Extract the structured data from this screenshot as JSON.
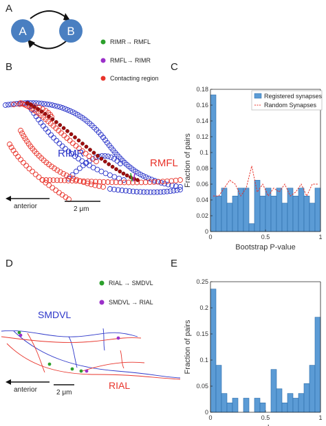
{
  "panels": {
    "A": {
      "letter": "A",
      "node_a": "A",
      "node_b": "B",
      "node_color": "#4a7fc1"
    },
    "B": {
      "letter": "B",
      "legend": [
        {
          "label": "RIMR→ RMFL",
          "color": "#2ca02c"
        },
        {
          "label": "RMFL→ RIMR",
          "color": "#9b30c9"
        },
        {
          "label": "Contacting region",
          "color": "#e8332a"
        }
      ],
      "labels": {
        "rimr": "RIMR",
        "rmfl": "RMFL",
        "anterior": "anterior",
        "scale": "2 μm"
      },
      "colors": {
        "rimr": "#2b35c9",
        "rmfl": "#e8332a",
        "contact": "#a01010"
      }
    },
    "C": {
      "letter": "C"
    },
    "D": {
      "letter": "D",
      "legend": [
        {
          "label": "RIAL → SMDVL",
          "color": "#2ca02c"
        },
        {
          "label": "SMDVL → RIAL",
          "color": "#9b30c9"
        }
      ],
      "labels": {
        "smdvl": "SMDVL",
        "rial": "RIAL",
        "anterior": "anterior",
        "scale": "2 μm"
      },
      "colors": {
        "smdvl": "#2b35c9",
        "rial": "#e8332a"
      }
    },
    "E": {
      "letter": "E"
    }
  },
  "chart_data": [
    {
      "type": "bar",
      "panel": "C",
      "xlabel": "Bootstrap P-value",
      "ylabel": "Fraction of pairs",
      "xlim": [
        0,
        1
      ],
      "ylim": [
        0,
        0.18
      ],
      "xticks": [
        "0",
        "0.5",
        "1"
      ],
      "yticks": [
        "0",
        "0.02",
        "0.04",
        "0.06",
        "0.08",
        "0.1",
        "0.12",
        "0.14",
        "0.16",
        "0.18"
      ],
      "bar_color": "#5b9bd5",
      "legend_position": "top-right",
      "series": [
        {
          "name": "Registered synapses",
          "kind": "bar",
          "bin_edges": [
            0,
            0.05,
            0.1,
            0.15,
            0.2,
            0.25,
            0.3,
            0.35,
            0.4,
            0.45,
            0.5,
            0.55,
            0.6,
            0.65,
            0.7,
            0.75,
            0.8,
            0.85,
            0.9,
            0.95,
            1.0
          ],
          "values": [
            0.173,
            0.045,
            0.055,
            0.036,
            0.045,
            0.055,
            0.055,
            0.01,
            0.065,
            0.045,
            0.055,
            0.045,
            0.055,
            0.036,
            0.055,
            0.045,
            0.055,
            0.045,
            0.036,
            0.055
          ]
        },
        {
          "name": "Random Synapses",
          "kind": "line",
          "color": "#e8332a",
          "x": [
            0.025,
            0.075,
            0.125,
            0.175,
            0.225,
            0.275,
            0.325,
            0.375,
            0.425,
            0.475,
            0.525,
            0.575,
            0.625,
            0.675,
            0.725,
            0.775,
            0.825,
            0.875,
            0.925,
            0.975
          ],
          "values": [
            0.045,
            0.045,
            0.055,
            0.065,
            0.06,
            0.045,
            0.055,
            0.083,
            0.05,
            0.06,
            0.045,
            0.055,
            0.05,
            0.06,
            0.045,
            0.05,
            0.06,
            0.045,
            0.06,
            0.06
          ]
        }
      ]
    },
    {
      "type": "bar",
      "panel": "E",
      "xlabel": "p value",
      "ylabel": "Fraction of pairs",
      "xlim": [
        0,
        1
      ],
      "ylim": [
        0,
        0.25
      ],
      "xticks": [
        "0",
        "0.5",
        "1"
      ],
      "yticks": [
        "0",
        "0.05",
        "0.1",
        "0.15",
        "0.2",
        "0.25"
      ],
      "bar_color": "#5b9bd5",
      "series": [
        {
          "kind": "bar",
          "bin_edges": [
            0,
            0.05,
            0.1,
            0.15,
            0.2,
            0.25,
            0.3,
            0.35,
            0.4,
            0.45,
            0.5,
            0.55,
            0.6,
            0.65,
            0.7,
            0.75,
            0.8,
            0.85,
            0.9,
            0.95,
            1.0
          ],
          "values": [
            0.236,
            0.09,
            0.036,
            0.018,
            0.027,
            0,
            0.027,
            0,
            0.027,
            0.018,
            0,
            0.082,
            0.045,
            0.018,
            0.036,
            0.027,
            0.036,
            0.055,
            0.09,
            0.182
          ]
        }
      ]
    }
  ]
}
